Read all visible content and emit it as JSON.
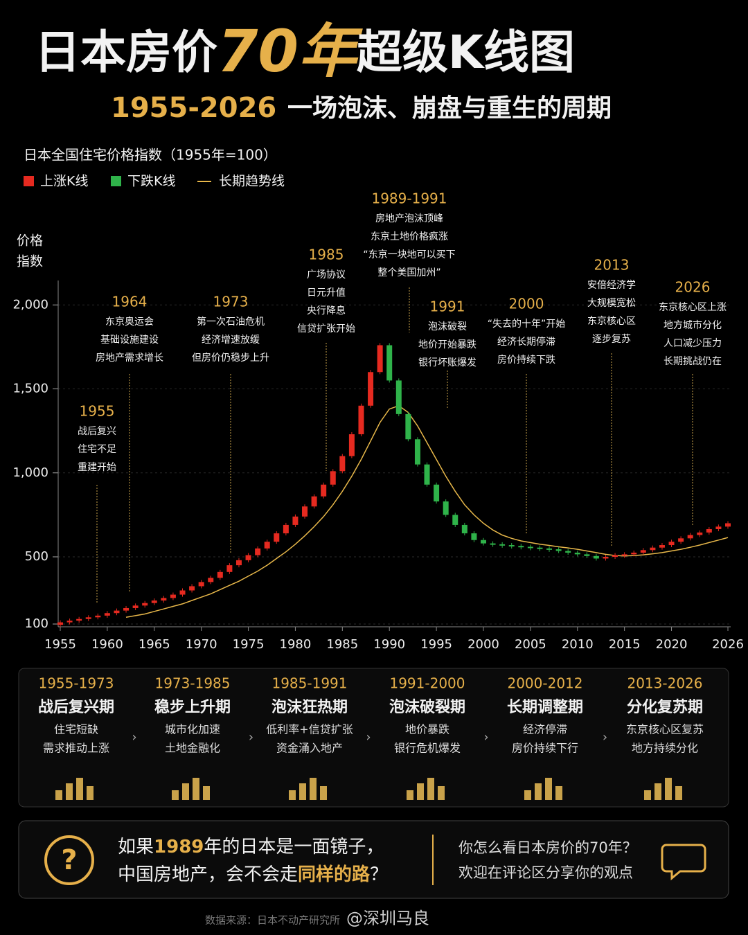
{
  "header": {
    "title_parts": [
      "日本房价",
      "70年",
      "超级K线图"
    ],
    "subtitle_years": "1955-2026",
    "subtitle": "一场泡沫、崩盘与重生的周期"
  },
  "chart_data": {
    "type": "candlestick",
    "title": "日本全国住宅价格指数（1955年=100）",
    "y_label_lines": [
      "价格",
      "指数"
    ],
    "x": [
      1955,
      1956,
      1957,
      1958,
      1959,
      1960,
      1961,
      1962,
      1963,
      1964,
      1965,
      1966,
      1967,
      1968,
      1969,
      1970,
      1971,
      1972,
      1973,
      1974,
      1975,
      1976,
      1977,
      1978,
      1979,
      1980,
      1981,
      1982,
      1983,
      1984,
      1985,
      1986,
      1987,
      1988,
      1989,
      1990,
      1991,
      1992,
      1993,
      1994,
      1995,
      1996,
      1997,
      1998,
      1999,
      2000,
      2001,
      2002,
      2003,
      2004,
      2005,
      2006,
      2007,
      2008,
      2009,
      2010,
      2011,
      2012,
      2013,
      2014,
      2015,
      2016,
      2017,
      2018,
      2019,
      2020,
      2021,
      2022,
      2023,
      2024,
      2025,
      2026
    ],
    "open": [
      95,
      110,
      120,
      130,
      140,
      150,
      165,
      180,
      195,
      210,
      225,
      240,
      255,
      275,
      300,
      325,
      350,
      375,
      410,
      450,
      480,
      510,
      550,
      590,
      640,
      690,
      740,
      800,
      860,
      930,
      1010,
      1100,
      1230,
      1400,
      1600,
      1760,
      1550,
      1350,
      1200,
      1050,
      930,
      830,
      750,
      690,
      640,
      600,
      580,
      575,
      570,
      565,
      560,
      555,
      550,
      545,
      535,
      525,
      515,
      505,
      490,
      500,
      510,
      515,
      525,
      540,
      555,
      570,
      590,
      610,
      630,
      645,
      665,
      680
    ],
    "close": [
      110,
      120,
      130,
      140,
      150,
      165,
      180,
      195,
      210,
      225,
      240,
      255,
      275,
      300,
      325,
      350,
      375,
      410,
      450,
      480,
      510,
      550,
      590,
      640,
      690,
      740,
      800,
      860,
      930,
      1010,
      1100,
      1230,
      1400,
      1600,
      1760,
      1550,
      1350,
      1200,
      1050,
      930,
      830,
      750,
      690,
      640,
      600,
      580,
      575,
      570,
      565,
      560,
      555,
      550,
      545,
      535,
      525,
      515,
      505,
      490,
      500,
      510,
      515,
      525,
      540,
      555,
      570,
      590,
      610,
      630,
      645,
      665,
      680,
      700
    ],
    "series": [
      {
        "name": "上涨K线",
        "color": "#e62a20"
      },
      {
        "name": "下跌K线",
        "color": "#2fb34a"
      },
      {
        "name": "长期趋势线",
        "color": "#e8b84a",
        "values": [
          null,
          null,
          null,
          null,
          null,
          null,
          null,
          140,
          150,
          160,
          175,
          190,
          205,
          220,
          240,
          260,
          280,
          305,
          330,
          355,
          385,
          415,
          450,
          490,
          530,
          575,
          625,
          680,
          740,
          810,
          890,
          980,
          1080,
          1190,
          1300,
          1380,
          1400,
          1360,
          1280,
          1180,
          1080,
          980,
          890,
          810,
          750,
          700,
          660,
          630,
          610,
          595,
          585,
          575,
          568,
          560,
          553,
          545,
          535,
          525,
          515,
          508,
          505,
          508,
          512,
          518,
          525,
          535,
          545,
          557,
          570,
          585,
          600,
          615
        ]
      }
    ],
    "xlim": [
      1955,
      2026
    ],
    "xticks": [
      1955,
      1960,
      1965,
      1970,
      1975,
      1980,
      1985,
      1990,
      1995,
      2000,
      2005,
      2010,
      2015,
      2020,
      2026
    ],
    "ylim": [
      100,
      2100
    ],
    "yticks": [
      100,
      500,
      {
        "value": 1000,
        "label": "1,000"
      },
      {
        "value": 1500,
        "label": "1,500"
      },
      {
        "value": 2000,
        "label": "2,000"
      }
    ],
    "grid": true,
    "annotations": [
      {
        "label": "1955",
        "lines": [
          "战后复兴",
          "住宅不足",
          "重建开始"
        ]
      },
      {
        "label": "1964",
        "lines": [
          "东京奥运会",
          "基础设施建设",
          "房地产需求增长"
        ]
      },
      {
        "label": "1973",
        "lines": [
          "第一次石油危机",
          "经济增速放缓",
          "但房价仍稳步上升"
        ]
      },
      {
        "label": "1985",
        "lines": [
          "广场协议",
          "日元升值",
          "央行降息",
          "信贷扩张开始"
        ]
      },
      {
        "label": "1989-1991",
        "lines": [
          "房地产泡沫顶峰",
          "东京土地价格疯涨",
          "“东京一块地可以买下",
          "整个美国加州”"
        ]
      },
      {
        "label": "1991",
        "lines": [
          "泡沫破裂",
          "地价开始暴跌",
          "银行坏账爆发"
        ]
      },
      {
        "label": "2000",
        "lines": [
          "“失去的十年”开始",
          "经济长期停滞",
          "房价持续下跌"
        ]
      },
      {
        "label": "2013",
        "lines": [
          "安倍经济学",
          "大规模宽松",
          "东京核心区",
          "逐步复苏"
        ]
      },
      {
        "label": "2026",
        "lines": [
          "东京核心区上涨",
          "地方城市分化",
          "人口减少压力",
          "长期挑战仍在"
        ]
      }
    ]
  },
  "stages": [
    {
      "period": "1955-1973",
      "title": "战后复兴期",
      "lines": [
        "住宅短缺",
        "需求推动上涨"
      ]
    },
    {
      "period": "1973-1985",
      "title": "稳步上升期",
      "lines": [
        "城市化加速",
        "土地金融化"
      ]
    },
    {
      "period": "1985-1991",
      "title": "泡沫狂热期",
      "lines": [
        "低利率+信贷扩张",
        "资金涌入地产"
      ]
    },
    {
      "period": "1991-2000",
      "title": "泡沫破裂期",
      "lines": [
        "地价暴跌",
        "银行危机爆发"
      ]
    },
    {
      "period": "2000-2012",
      "title": "长期调整期",
      "lines": [
        "经济停滞",
        "房价持续下行"
      ]
    },
    {
      "period": "2013-2026",
      "title": "分化复苏期",
      "lines": [
        "东京核心区复苏",
        "地方持续分化"
      ]
    }
  ],
  "question": {
    "line1": [
      "如果",
      "1989",
      "年的日本是一面镜子，"
    ],
    "line2": [
      "中国房地产，会不会走",
      "同样的路",
      "？"
    ],
    "prompt": [
      "你怎么看日本房价的70年？",
      "欢迎在评论区分享你的观点"
    ]
  },
  "footer": {
    "source": "数据来源：日本不动产研究所",
    "watermark": "@深圳马良"
  }
}
